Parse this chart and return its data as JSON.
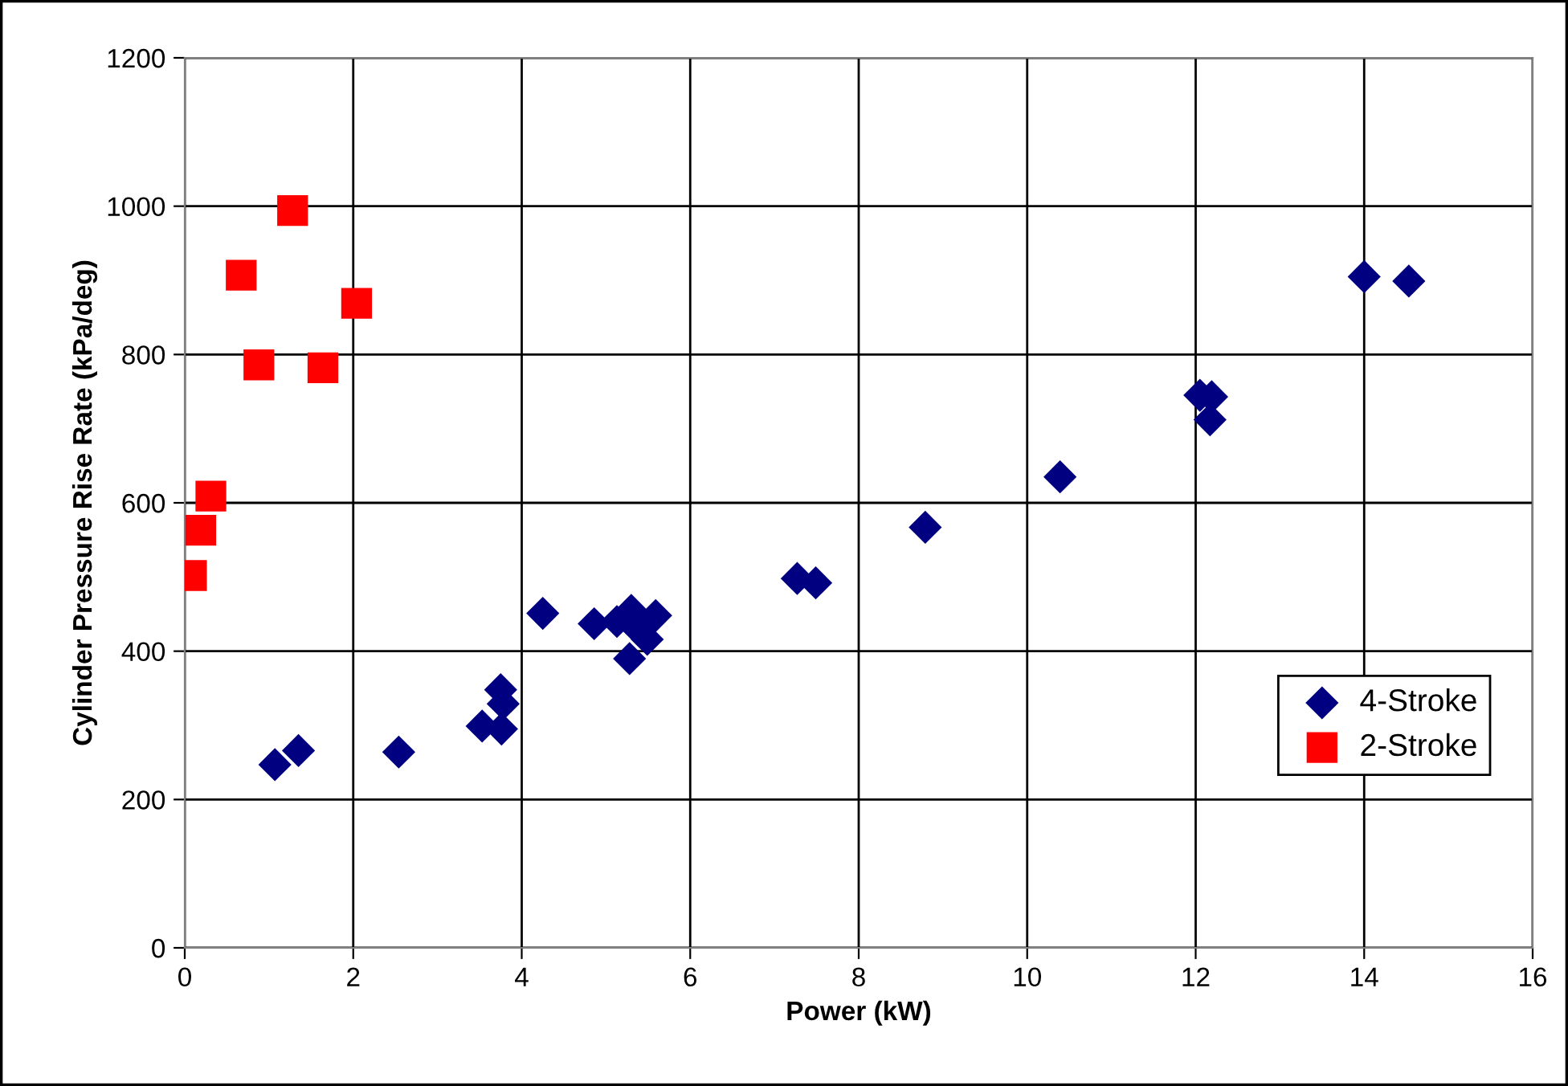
{
  "chart_data": {
    "type": "scatter",
    "xlabel": "Power (kW)",
    "ylabel": "Cylinder Pressure Rise Rate (kPa/deg)",
    "xlim": [
      0,
      16
    ],
    "xticks": [
      0,
      2,
      4,
      6,
      8,
      10,
      12,
      14,
      16
    ],
    "ylim": [
      0,
      1200
    ],
    "yticks": [
      0,
      200,
      400,
      600,
      800,
      1000,
      1200
    ],
    "grid": true,
    "legend": "right",
    "series": [
      {
        "name": "4-Stroke",
        "color": "#000080",
        "marker": "diamond",
        "x": [
          1.07,
          1.35,
          2.54,
          3.49,
          3.53,
          3.75,
          3.78,
          3.76,
          4.2,
          4.25,
          4.86,
          5.13,
          5.3,
          5.38,
          5.49,
          5.28,
          5.59,
          7.27,
          7.49,
          8.79,
          10.32,
          10.39,
          12.05,
          12.19,
          12.17,
          13.96,
          14.0,
          14.53
        ],
        "values": [
          247,
          266,
          264,
          null,
          299,
          348,
          329,
          295,
          null,
          451,
          437,
          440,
          455,
          429,
          416,
          390,
          448,
          498,
          492,
          567,
          null,
          635,
          745,
          743,
          712,
          null,
          905,
          899
        ]
      },
      {
        "name": "2-Stroke",
        "color": "#ff0000",
        "marker": "square",
        "x": [
          1.28,
          0.67,
          0.88,
          1.64,
          2.04,
          0.31,
          0.19,
          0.08
        ],
        "values": [
          994,
          907,
          786,
          782,
          869,
          609,
          563,
          502
        ]
      }
    ]
  }
}
